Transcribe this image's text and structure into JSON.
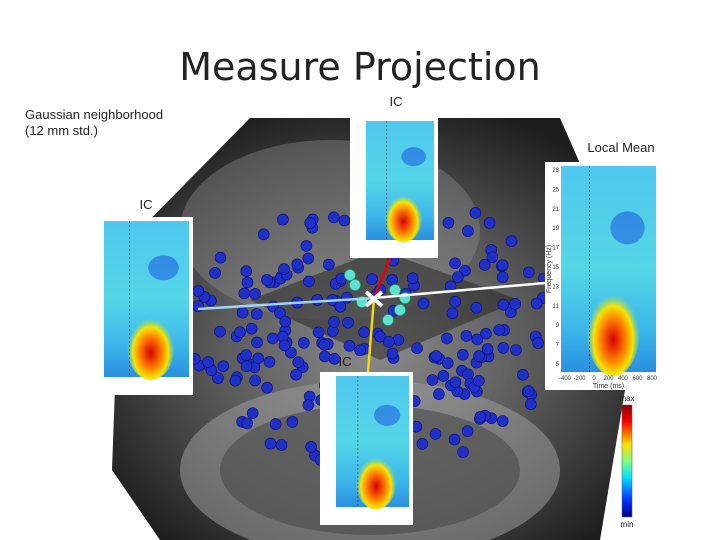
{
  "title": "Measure Projection",
  "annotation": {
    "line1": "Gaussian neighborhood",
    "line2": "(12 mm std.)"
  },
  "panels": [
    {
      "label": "IC"
    },
    {
      "label": "IC"
    },
    {
      "label": "IC"
    },
    {
      "label": "Local Mean",
      "y_label": "Frequency (Hz)",
      "x_label": "Time (ms)",
      "yticks": [
        28,
        25,
        21,
        19,
        17,
        15,
        13,
        11,
        9,
        7,
        5
      ],
      "xticks": [
        -400,
        -200,
        0,
        200,
        400,
        600,
        800
      ]
    }
  ],
  "colorbar": {
    "max": "max",
    "min": "min"
  }
}
